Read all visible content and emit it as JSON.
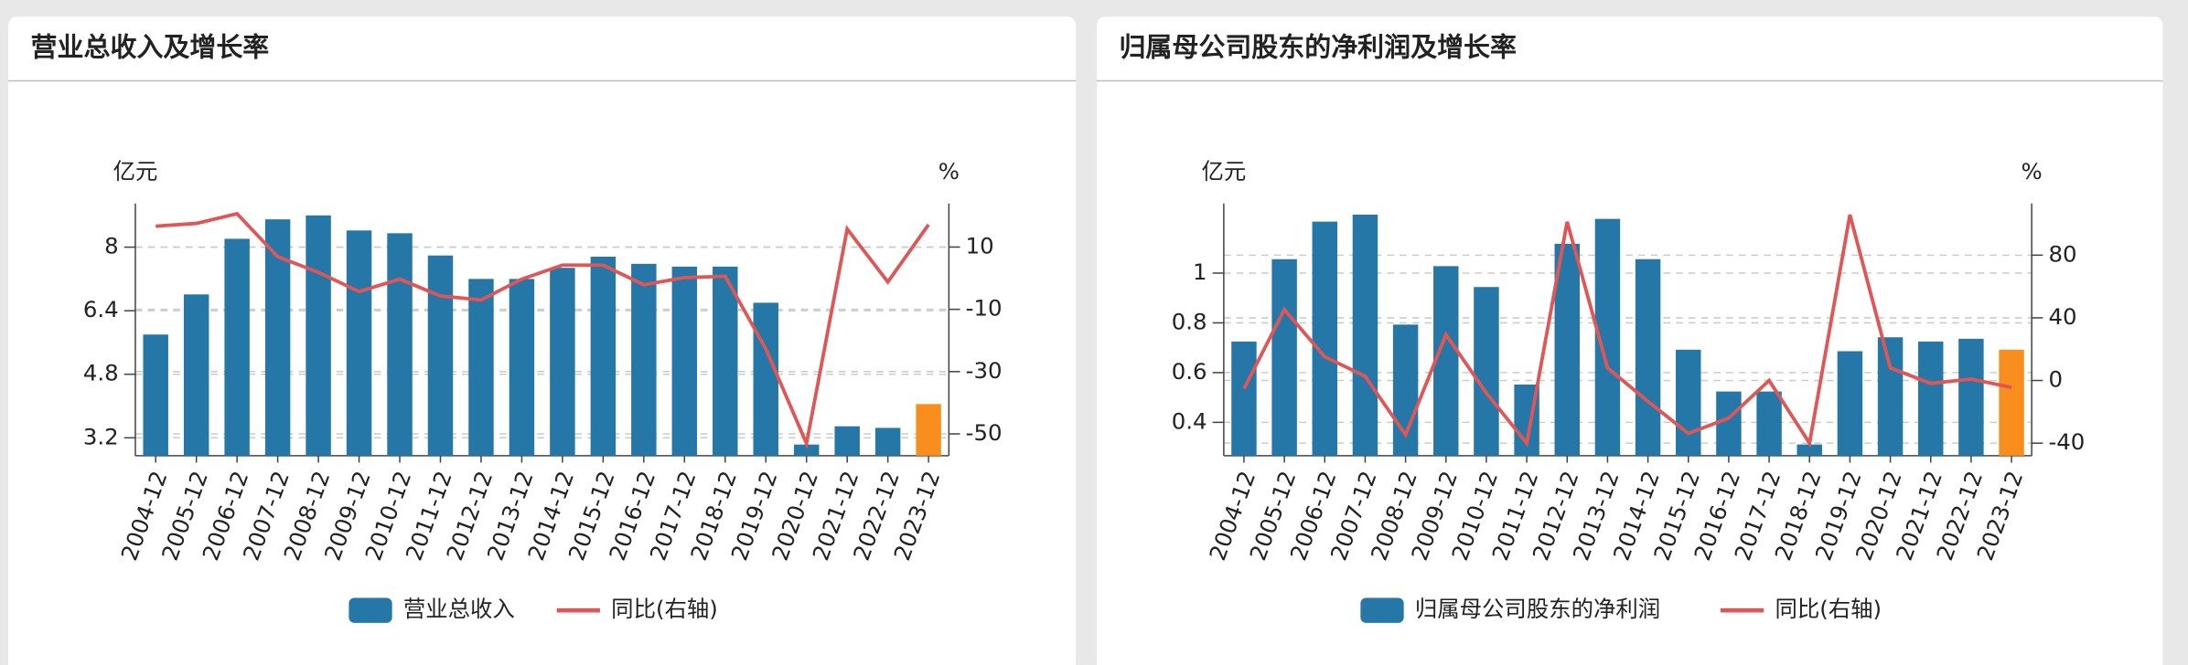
{
  "chart_data": [
    {
      "type": "bar_line",
      "title": "营业总收入及增长率",
      "y_unit": "亿元",
      "y2_unit": "%",
      "categories": [
        "2004-12",
        "2005-12",
        "2006-12",
        "2007-12",
        "2008-12",
        "2009-12",
        "2010-12",
        "2011-12",
        "2012-12",
        "2013-12",
        "2014-12",
        "2015-12",
        "2016-12",
        "2017-12",
        "2018-12",
        "2019-12",
        "2020-12",
        "2021-12",
        "2022-12",
        "2023-12"
      ],
      "series": [
        {
          "name": "营业总收入",
          "type": "bar",
          "color": "#2477a7",
          "colors": [
            "#2477a7",
            "#2477a7",
            "#2477a7",
            "#2477a7",
            "#2477a7",
            "#2477a7",
            "#2477a7",
            "#2477a7",
            "#2477a7",
            "#2477a7",
            "#2477a7",
            "#2477a7",
            "#2477a7",
            "#2477a7",
            "#2477a7",
            "#2477a7",
            "#2477a7",
            "#2477a7",
            "#2477a7",
            "#f98e1f"
          ],
          "values": [
            5.8,
            6.81,
            8.21,
            8.7,
            8.8,
            8.42,
            8.35,
            7.79,
            7.2,
            7.2,
            7.48,
            7.76,
            7.58,
            7.51,
            7.51,
            6.6,
            3.03,
            3.49,
            3.45,
            4.05
          ]
        },
        {
          "name": "同比(右轴)",
          "type": "line",
          "axis": "y2",
          "color": "#e05656",
          "values": [
            16.7,
            17.6,
            20.7,
            6.9,
            1.9,
            -4.3,
            -0.3,
            -5.7,
            -7,
            -0.3,
            4.2,
            4.2,
            -2.1,
            0.2,
            0.6,
            -22.7,
            -53.1,
            15.8,
            -1.2,
            17.2
          ]
        }
      ],
      "ylim": [
        2.75,
        9.1
      ],
      "yticks": [
        3.2,
        4.8,
        6.4,
        8
      ],
      "y2lim": [
        -57,
        24
      ],
      "y2ticks": [
        -50,
        -30,
        -10,
        10
      ],
      "grid": true
    },
    {
      "type": "bar_line",
      "title": "归属母公司股东的净利润及增长率",
      "y_unit": "亿元",
      "y2_unit": "%",
      "categories": [
        "2004-12",
        "2005-12",
        "2006-12",
        "2007-12",
        "2008-12",
        "2009-12",
        "2010-12",
        "2011-12",
        "2012-12",
        "2013-12",
        "2014-12",
        "2015-12",
        "2016-12",
        "2017-12",
        "2018-12",
        "2019-12",
        "2020-12",
        "2021-12",
        "2022-12",
        "2023-12"
      ],
      "series": [
        {
          "name": "归属母公司股东的净利润",
          "type": "bar",
          "color": "#2477a7",
          "colors": [
            "#2477a7",
            "#2477a7",
            "#2477a7",
            "#2477a7",
            "#2477a7",
            "#2477a7",
            "#2477a7",
            "#2477a7",
            "#2477a7",
            "#2477a7",
            "#2477a7",
            "#2477a7",
            "#2477a7",
            "#2477a7",
            "#2477a7",
            "#2477a7",
            "#2477a7",
            "#2477a7",
            "#2477a7",
            "#f98e1f"
          ],
          "values": [
            0.725,
            1.056,
            1.207,
            1.235,
            0.793,
            1.028,
            0.944,
            0.552,
            1.118,
            1.218,
            1.056,
            0.692,
            0.524,
            0.524,
            0.311,
            0.686,
            0.742,
            0.725,
            0.736,
            0.692
          ]
        },
        {
          "name": "同比(右轴)",
          "type": "line",
          "axis": "y2",
          "color": "#e05656",
          "values": [
            -5.3,
            45.3,
            15.1,
            2.7,
            -34.7,
            29.3,
            -8,
            -40,
            101.3,
            8,
            -13.3,
            -33.8,
            -24,
            0,
            -40,
            105.8,
            8,
            -1.8,
            0.9,
            -4.4
          ]
        }
      ],
      "ylim": [
        0.266,
        1.28
      ],
      "yticks": [
        0.4,
        0.6,
        0.8,
        1
      ],
      "y2lim": [
        -48,
        113
      ],
      "y2ticks": [
        -40,
        0,
        40,
        80
      ],
      "grid": true
    }
  ]
}
